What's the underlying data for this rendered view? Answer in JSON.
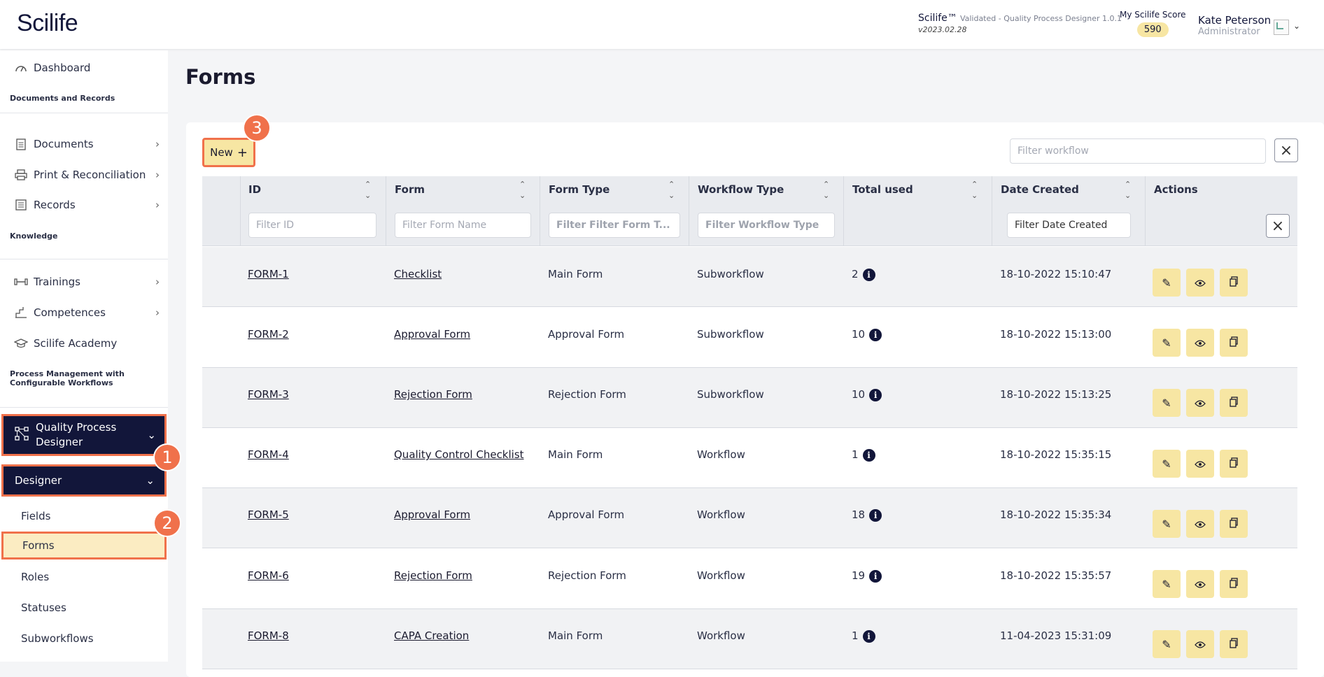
{
  "header": {
    "logo": "Scilife",
    "app_name": "Scilife™",
    "app_desc": "Validated - Quality Process Designer 1.0.1",
    "app_version": "v2023.02.28",
    "score_label": "My Scilife Score",
    "score_value": "590",
    "user_name": "Kate Peterson",
    "user_role": "Administrator"
  },
  "sidebar": {
    "dashboard": "Dashboard",
    "section_docs": "Documents and Records",
    "documents": "Documents",
    "print": "Print & Reconciliation",
    "records": "Records",
    "section_knowledge": "Knowledge",
    "trainings": "Trainings",
    "competences": "Competences",
    "academy": "Scilife Academy",
    "section_process_1": "Process Management with",
    "section_process_2": "Configurable Workflows",
    "qpd": "Quality Process Designer",
    "designer": "Designer",
    "sub_items": [
      "Fields",
      "Forms",
      "Roles",
      "Statuses",
      "Subworkflows"
    ]
  },
  "steps": [
    "1",
    "2",
    "3"
  ],
  "main": {
    "title": "Forms",
    "new_label": "New",
    "filter_workflow_placeholder": "Filter workflow",
    "columns": {
      "id": "ID",
      "form": "Form",
      "form_type": "Form Type",
      "workflow_type": "Workflow Type",
      "total_used": "Total used",
      "date_created": "Date Created",
      "actions": "Actions"
    },
    "filters": {
      "id": "Filter ID",
      "form": "Filter Form Name",
      "form_type": "Filter Filter Form T...",
      "workflow_type": "Filter Workflow Type",
      "date_created": "Filter Date Created"
    },
    "rows": [
      {
        "id": "FORM-1",
        "form": "Checklist",
        "form_type": "Main Form",
        "workflow_type": "Subworkflow",
        "total": "2",
        "date": "18-10-2022 15:10:47"
      },
      {
        "id": "FORM-2",
        "form": "Approval Form",
        "form_type": "Approval Form",
        "workflow_type": "Subworkflow",
        "total": "10",
        "date": "18-10-2022 15:13:00"
      },
      {
        "id": "FORM-3",
        "form": "Rejection Form",
        "form_type": "Rejection Form",
        "workflow_type": "Subworkflow",
        "total": "10",
        "date": "18-10-2022 15:13:25"
      },
      {
        "id": "FORM-4",
        "form": "Quality Control Checklist",
        "form_type": "Main Form",
        "workflow_type": "Workflow",
        "total": "1",
        "date": "18-10-2022 15:35:15"
      },
      {
        "id": "FORM-5",
        "form": "Approval Form",
        "form_type": "Approval Form",
        "workflow_type": "Workflow",
        "total": "18",
        "date": "18-10-2022 15:35:34"
      },
      {
        "id": "FORM-6",
        "form": "Rejection Form",
        "form_type": "Rejection Form",
        "workflow_type": "Workflow",
        "total": "19",
        "date": "18-10-2022 15:35:57"
      },
      {
        "id": "FORM-8",
        "form": "CAPA Creation",
        "form_type": "Main Form",
        "workflow_type": "Workflow",
        "total": "1",
        "date": "11-04-2023 15:31:09"
      }
    ]
  },
  "colors": {
    "navy": "#12163a",
    "accent_yellow": "#f7e6a3",
    "highlight": "#f0714b"
  }
}
